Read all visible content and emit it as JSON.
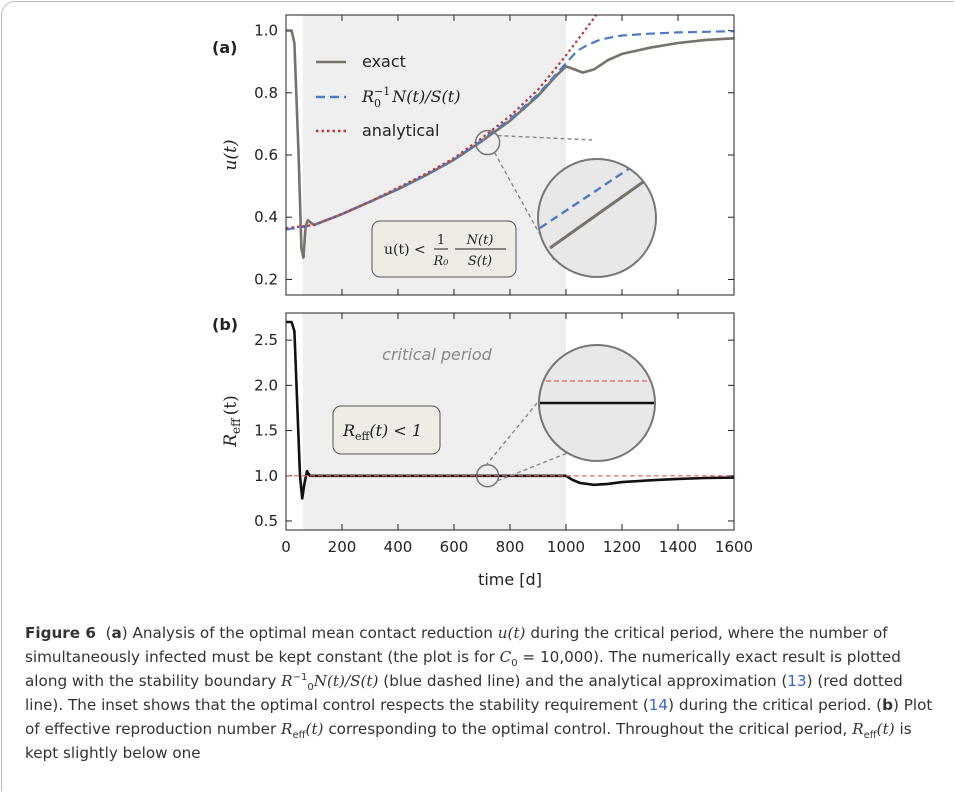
{
  "chart_data": [
    {
      "type": "line",
      "panel_label": "(a)",
      "ylabel": "u(t)",
      "xlim": [
        0,
        1600
      ],
      "ylim": [
        0.15,
        1.05
      ],
      "yticks": [
        0.2,
        0.4,
        0.6,
        0.8,
        1.0
      ],
      "ytick_labels": [
        "0.2",
        "0.4",
        "0.6",
        "0.8",
        "1.0"
      ],
      "shaded_region": [
        60,
        1000
      ],
      "legend_position": "top-left",
      "series": [
        {
          "name": "exact",
          "color": "#77726a",
          "style": "solid",
          "x": [
            0,
            20,
            30,
            45,
            55,
            62,
            70,
            78,
            100,
            200,
            300,
            400,
            500,
            600,
            700,
            800,
            900,
            960,
            1000,
            1030,
            1060,
            1100,
            1150,
            1200,
            1300,
            1400,
            1500,
            1600
          ],
          "y": [
            1.0,
            1.0,
            0.96,
            0.6,
            0.3,
            0.27,
            0.37,
            0.39,
            0.375,
            0.41,
            0.45,
            0.49,
            0.535,
            0.585,
            0.645,
            0.71,
            0.79,
            0.85,
            0.885,
            0.875,
            0.865,
            0.875,
            0.905,
            0.925,
            0.945,
            0.96,
            0.97,
            0.975
          ]
        },
        {
          "name": "R0^-1 N(t)/S(t)",
          "color": "#4f7bc4",
          "style": "dashed",
          "x": [
            0,
            100,
            200,
            300,
            400,
            500,
            600,
            700,
            800,
            900,
            960,
            1000,
            1040,
            1080,
            1120,
            1160,
            1200,
            1300,
            1400,
            1500,
            1600
          ],
          "y": [
            0.36,
            0.375,
            0.41,
            0.45,
            0.49,
            0.535,
            0.585,
            0.648,
            0.715,
            0.795,
            0.855,
            0.895,
            0.935,
            0.955,
            0.97,
            0.978,
            0.984,
            0.99,
            0.994,
            0.996,
            0.998
          ]
        },
        {
          "name": "analytical",
          "color": "#b83a3a",
          "style": "dotted",
          "x": [
            0,
            100,
            200,
            300,
            400,
            500,
            600,
            700,
            800,
            900,
            960,
            1000,
            1050,
            1100,
            1140
          ],
          "y": [
            0.365,
            0.375,
            0.41,
            0.45,
            0.495,
            0.54,
            0.59,
            0.655,
            0.725,
            0.81,
            0.875,
            0.92,
            0.98,
            1.04,
            1.09
          ]
        }
      ],
      "annotation": "u(t) < 1/R0 · N(t)/S(t)"
    },
    {
      "type": "line",
      "panel_label": "(b)",
      "ylabel": "R_eff (t)",
      "xlabel": "time [d]",
      "xlim": [
        0,
        1600
      ],
      "ylim": [
        0.4,
        2.8
      ],
      "xticks": [
        0,
        200,
        400,
        600,
        800,
        1000,
        1200,
        1400,
        1600
      ],
      "xtick_labels": [
        "0",
        "200",
        "400",
        "600",
        "800",
        "1000",
        "1200",
        "1400",
        "1600"
      ],
      "yticks": [
        0.5,
        1.0,
        1.5,
        2.0,
        2.5
      ],
      "ytick_labels": [
        "0.5",
        "1.0",
        "1.5",
        "2.0",
        "2.5"
      ],
      "shaded_region": [
        60,
        1000
      ],
      "series": [
        {
          "name": "R_eff",
          "color": "#111111",
          "style": "solid",
          "x": [
            0,
            20,
            30,
            40,
            50,
            58,
            65,
            75,
            85,
            100,
            300,
            600,
            900,
            1000,
            1020,
            1050,
            1100,
            1150,
            1200,
            1300,
            1400,
            1500,
            1600
          ],
          "y": [
            2.7,
            2.7,
            2.6,
            1.8,
            1.0,
            0.75,
            0.9,
            1.05,
            1.0,
            1.0,
            1.0,
            1.0,
            1.0,
            1.0,
            0.96,
            0.92,
            0.9,
            0.91,
            0.93,
            0.95,
            0.965,
            0.975,
            0.98
          ]
        },
        {
          "name": "one",
          "color": "#e06464",
          "style": "dashed",
          "x": [
            0,
            1600
          ],
          "y": [
            1.0,
            1.0
          ]
        }
      ],
      "annotation_period": "critical period",
      "annotation_inequality": "R_eff(t) < 1"
    }
  ],
  "caption": {
    "label": "Figure 6",
    "text_a1": "(",
    "a": "a",
    "text_a2": ") Analysis of the optimal mean contact reduction ",
    "u_t": "u(t)",
    "text_a3": " during the critical period, where the number of simultaneously infected must be kept constant (the plot is for ",
    "c0": "C",
    "c0_sub": "0",
    "text_a4": " = 10,000). The numerically exact result is plotted along with the stability boundary ",
    "r0": "R",
    "r0_sub": "0",
    "r0_sup": "−1",
    "nst": "N(t)/S(t)",
    "text_a5": " (blue dashed line) and the analytical approximation (",
    "ref13": "13",
    "text_a6": ") (red dotted line). The inset shows that the optimal control respects the stability requirement (",
    "ref14": "14",
    "text_a7": ") during the critical period. (",
    "b": "b",
    "text_b1": ") Plot of effective reproduction number ",
    "reff": "R",
    "reff_sub": "eff",
    "reff_t": "(t)",
    "text_b2": " corresponding to the optimal control. Throughout the critical period, ",
    "text_b3": " is kept slightly below one"
  }
}
